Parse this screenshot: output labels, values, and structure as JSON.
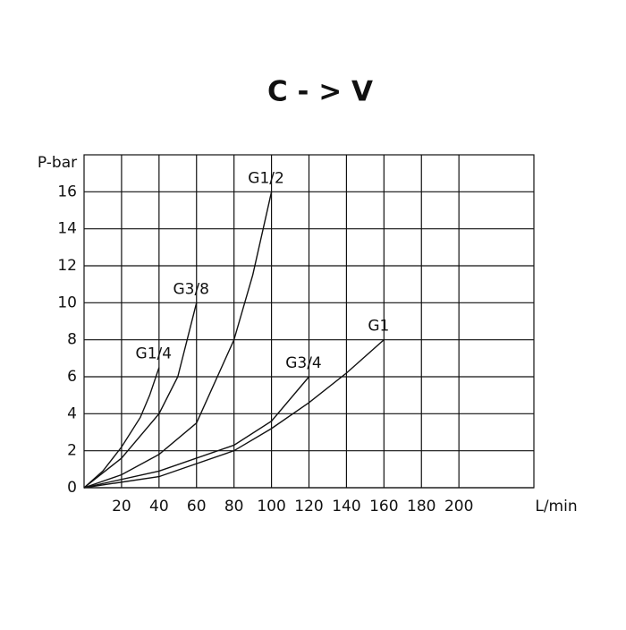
{
  "chart_data": {
    "type": "line",
    "title": "C - > V",
    "xlabel": "L/min",
    "ylabel": "P-bar",
    "xlim": [
      0,
      240
    ],
    "xticks": [
      20,
      40,
      60,
      80,
      100,
      120,
      140,
      160,
      180,
      200
    ],
    "ylim": [
      0,
      18
    ],
    "yticks": [
      0,
      2,
      4,
      6,
      8,
      10,
      12,
      14,
      16
    ],
    "grid": true,
    "series": [
      {
        "name": "G1/4",
        "color": "#111111",
        "x": [
          0,
          10,
          20,
          30,
          35,
          40
        ],
        "values": [
          0,
          0.9,
          2.2,
          3.8,
          5,
          6.5
        ]
      },
      {
        "name": "G3/8",
        "color": "#111111",
        "x": [
          0,
          20,
          40,
          50,
          60
        ],
        "values": [
          0,
          1.6,
          4,
          6,
          10
        ]
      },
      {
        "name": "G1/2",
        "color": "#111111",
        "x": [
          0,
          20,
          40,
          60,
          80,
          90,
          100
        ],
        "values": [
          0,
          0.7,
          1.8,
          3.5,
          8,
          11.5,
          16
        ]
      },
      {
        "name": "G3/4",
        "color": "#111111",
        "x": [
          0,
          40,
          80,
          100,
          120
        ],
        "values": [
          0,
          0.9,
          2.3,
          3.6,
          6
        ]
      },
      {
        "name": "G1",
        "color": "#111111",
        "x": [
          0,
          40,
          80,
          100,
          120,
          140,
          160
        ],
        "values": [
          0,
          0.6,
          2,
          3.2,
          4.6,
          6.2,
          8
        ]
      }
    ]
  }
}
